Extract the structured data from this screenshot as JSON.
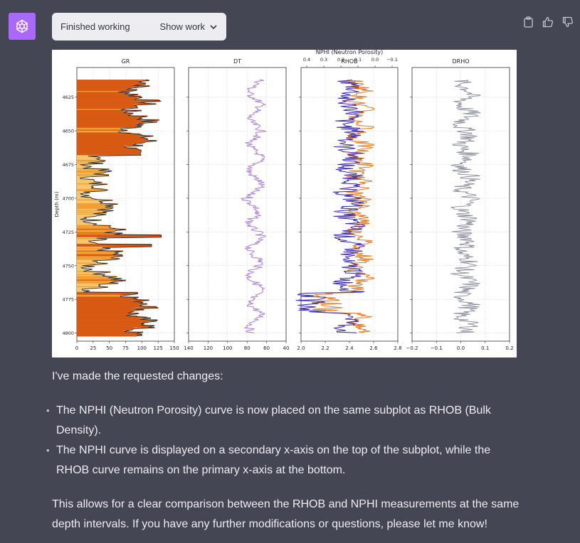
{
  "work": {
    "status": "Finished working",
    "show_label": "Show work"
  },
  "colors": {
    "bg": "#444654",
    "avatar": "#ab68ff",
    "gr_dark": "#d85a12",
    "gr_light": "#f7c66b",
    "dt": "#b088d8",
    "rhob": "#e8761c",
    "nphi": "#3a28b0",
    "drho": "#8a8a9a"
  },
  "figure": {
    "tracks": [
      {
        "title": "GR",
        "x_ticks": [
          "0",
          "25",
          "50",
          "75",
          "100",
          "125",
          "150"
        ]
      },
      {
        "title": "DT",
        "x_ticks": [
          "140",
          "120",
          "100",
          "80",
          "60",
          "40"
        ]
      },
      {
        "title": "RHOB",
        "top_title": "NPHI (Neutron Porosity)",
        "top_ticks": [
          "0.4",
          "0.3",
          "0.2",
          "0.1",
          "0.0",
          "−0.1"
        ],
        "x_ticks": [
          "2.0",
          "2.2",
          "2.4",
          "2.6",
          "2.8"
        ]
      },
      {
        "title": "DRHO",
        "x_ticks": [
          "−0.2",
          "−0.1",
          "0.0",
          "0.1",
          "0.2"
        ]
      }
    ],
    "ylabel": "Depth (m)",
    "depth_ticks": [
      "4625",
      "4650",
      "4675",
      "4700",
      "4725",
      "4750",
      "4775",
      "4800"
    ]
  },
  "message": {
    "intro": "I've made the requested changes:",
    "bullets": [
      [
        "The NPHI (Neutron Porosity) curve is now placed on the same subplot as RHOB (Bulk",
        "Density)."
      ],
      [
        "The NPHI curve is displayed on a secondary x-axis on the top of the subplot, while the",
        "RHOB curve remains on the primary x-axis at the bottom."
      ]
    ],
    "closing": [
      "This allows for a clear comparison between the RHOB and NPHI measurements at the same",
      "depth intervals. If you have any further modifications or questions, please let me know!"
    ]
  }
}
